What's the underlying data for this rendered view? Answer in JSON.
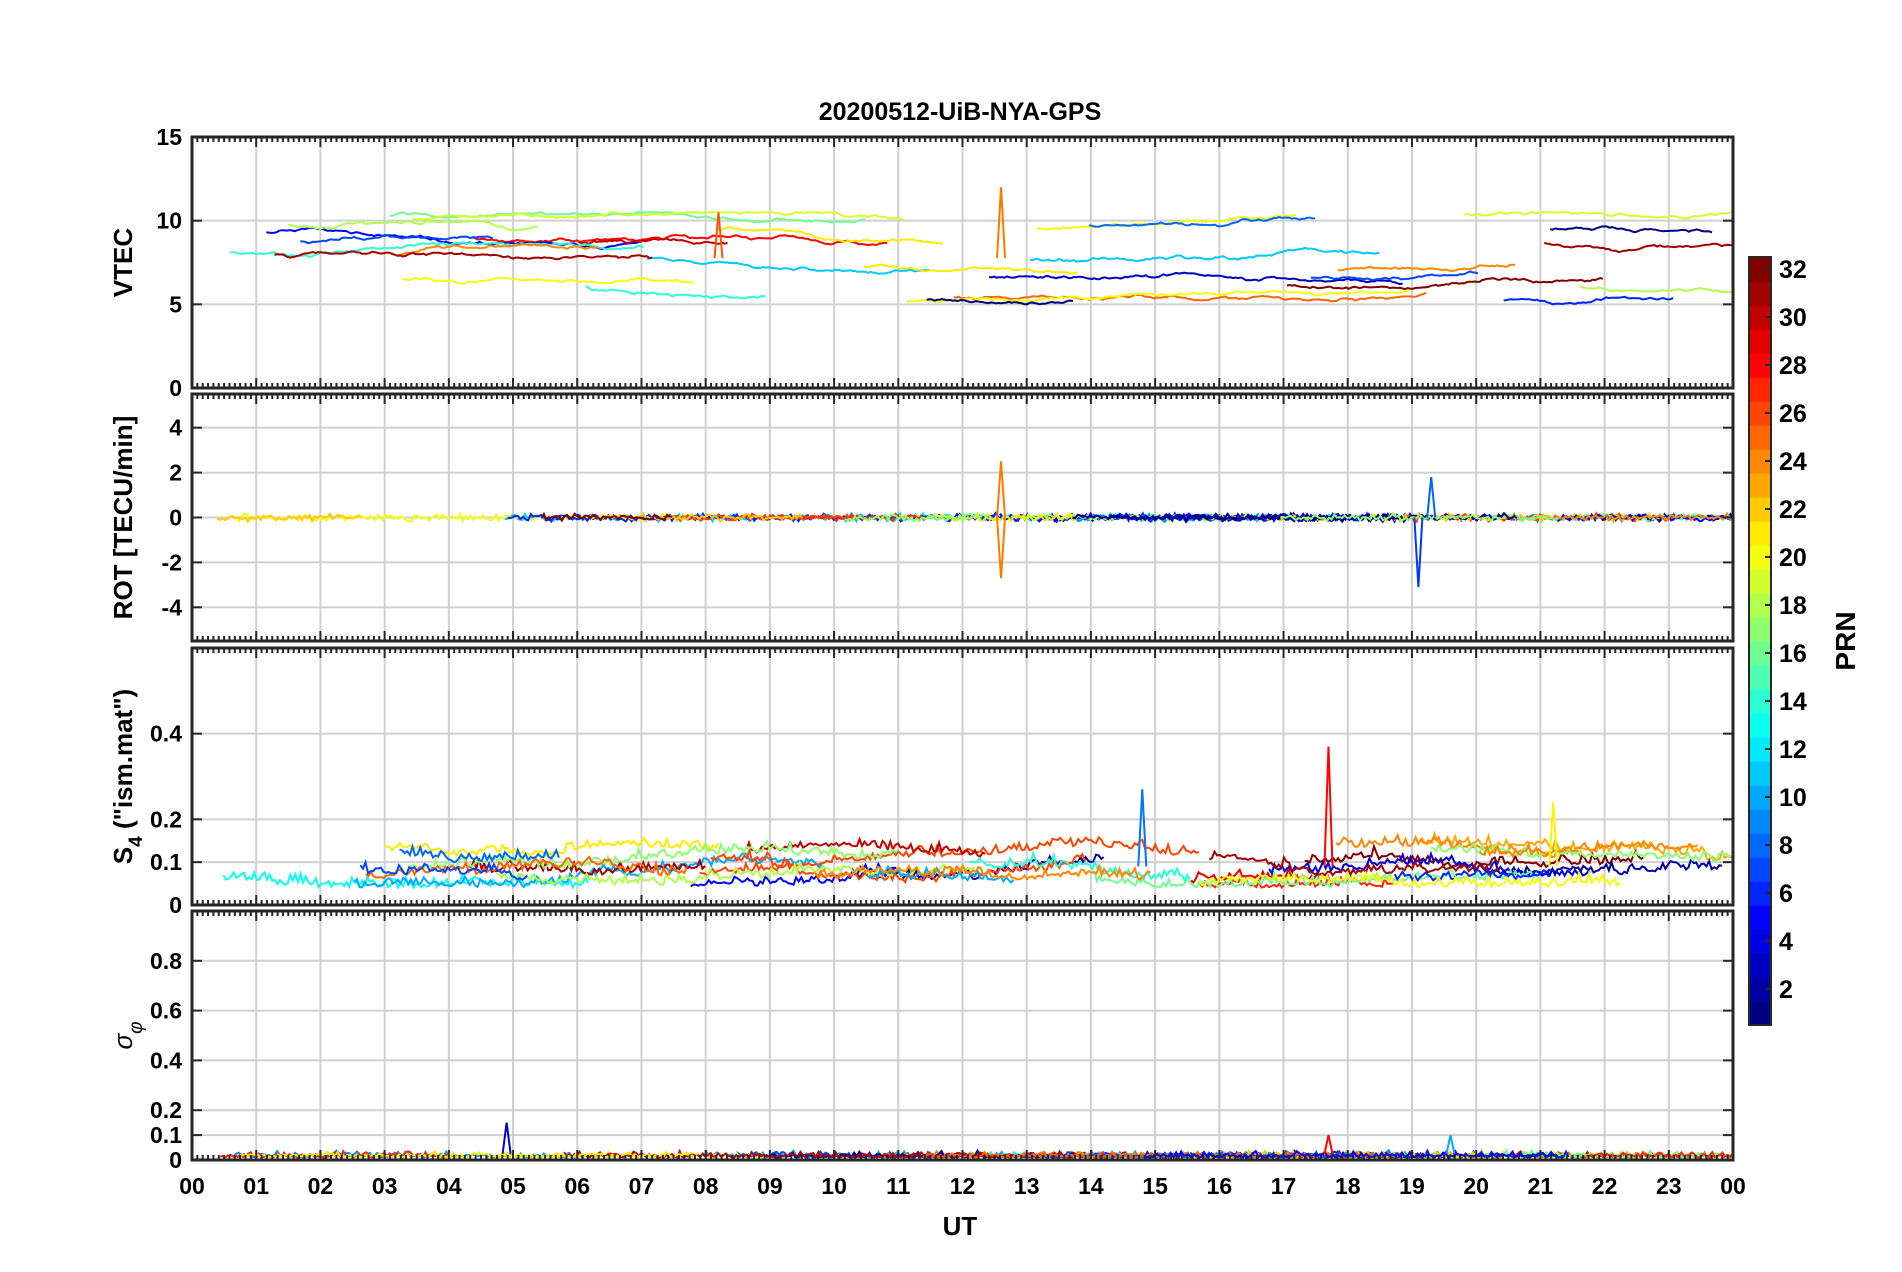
{
  "chart_data": {
    "type": "line",
    "title": "20200512-UiB-NYA-GPS",
    "xlabel": "UT",
    "x_ticks": [
      "00",
      "01",
      "02",
      "03",
      "04",
      "05",
      "06",
      "07",
      "08",
      "09",
      "10",
      "11",
      "12",
      "13",
      "14",
      "15",
      "16",
      "17",
      "18",
      "19",
      "20",
      "21",
      "22",
      "23",
      "00"
    ],
    "xlim": [
      0,
      24
    ],
    "grid": true,
    "colormap": "jet",
    "colorbar": {
      "label": "PRN",
      "range": [
        1,
        32
      ],
      "ticks": [
        2,
        4,
        6,
        8,
        10,
        12,
        14,
        16,
        18,
        20,
        22,
        24,
        26,
        28,
        30,
        32
      ],
      "tick_labels": [
        "2",
        "4",
        "6",
        "8",
        "10",
        "12",
        "14",
        "16",
        "18",
        "20",
        "22",
        "24",
        "26",
        "28",
        "30",
        "32"
      ]
    },
    "panels": [
      {
        "id": "vtec",
        "ylabel": "VTEC",
        "ylim": [
          0,
          15
        ],
        "y_ticks": [
          0,
          5,
          10,
          15
        ],
        "y_tick_labels": [
          "0",
          "5",
          "10",
          "15"
        ],
        "typical_range": [
          5,
          10.5
        ],
        "events": [
          {
            "time": 8.2,
            "value": 10.5
          },
          {
            "time": 12.6,
            "value": 12
          }
        ]
      },
      {
        "id": "rot",
        "ylabel": "ROT [TECU/min]",
        "ylim": [
          -5.5,
          5.5
        ],
        "y_ticks": [
          -4,
          -2,
          0,
          2,
          4
        ],
        "y_tick_labels": [
          "-4",
          "-2",
          "0",
          "2",
          "4"
        ],
        "typical_range": [
          -0.5,
          0.5
        ],
        "events": [
          {
            "time": 12.6,
            "value": 2.5
          },
          {
            "time": 12.6,
            "value": -2.7
          },
          {
            "time": 19.1,
            "value": -3.1
          },
          {
            "time": 19.3,
            "value": 1.8
          }
        ]
      },
      {
        "id": "s4",
        "ylabel_main": "S",
        "ylabel_sub": "4",
        "ylabel_rest": " (\"ism.mat\")",
        "ylim": [
          0,
          0.6
        ],
        "y_ticks": [
          0,
          0.1,
          0.2,
          0.4
        ],
        "y_tick_labels": [
          "0",
          "0.1",
          "0.2",
          "0.4"
        ],
        "typical_range": [
          0.04,
          0.14
        ],
        "events": [
          {
            "time": 17.7,
            "value": 0.37
          },
          {
            "time": 14.8,
            "value": 0.27
          },
          {
            "time": 21.2,
            "value": 0.24
          }
        ]
      },
      {
        "id": "sigma_phi",
        "ylabel_main": "σ",
        "ylabel_sub": "φ",
        "ylim": [
          0,
          1
        ],
        "y_ticks": [
          0,
          0.1,
          0.2,
          0.4,
          0.6,
          0.8
        ],
        "y_tick_labels": [
          "0",
          "0.1",
          "0.2",
          "0.4",
          "0.6",
          "0.8"
        ],
        "typical_range": [
          0.01,
          0.04
        ],
        "events": [
          {
            "time": 4.9,
            "value": 0.15
          },
          {
            "time": 17.7,
            "value": 0.1
          },
          {
            "time": 19.6,
            "value": 0.1
          }
        ]
      }
    ]
  }
}
